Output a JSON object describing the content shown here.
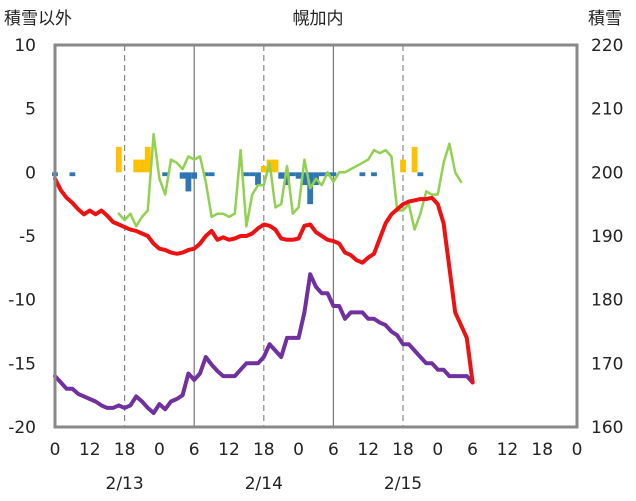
{
  "chart_data": {
    "type": "line",
    "title": "幌加内",
    "left_axis_label": "積雪以外",
    "right_axis_label": "積雪",
    "ylim_left": [
      -20,
      10
    ],
    "ylim_right": [
      160,
      220
    ],
    "left_ticks": [
      "10",
      "5",
      "0",
      "-5",
      "-10",
      "-15",
      "-20"
    ],
    "right_ticks": [
      "220",
      "210",
      "200",
      "190",
      "180",
      "170",
      "160"
    ],
    "x_hour_ticks": [
      "0",
      "12",
      "18",
      "0",
      "6",
      "12",
      "18",
      "0",
      "6",
      "12",
      "18",
      "0",
      "6",
      "12",
      "18",
      "0"
    ],
    "x_hour_values": [
      0,
      6,
      12,
      18,
      24,
      30,
      36,
      42,
      48,
      54,
      60,
      66,
      72,
      78,
      84,
      90
    ],
    "date_labels": [
      {
        "label": "2/13",
        "x": 12
      },
      {
        "label": "2/14",
        "x": 36
      },
      {
        "label": "2/15",
        "x": 60
      }
    ],
    "grid": {
      "dashed_hours": [
        12,
        36,
        60
      ],
      "solid_hours": [
        24,
        48
      ],
      "horizontal": "none"
    },
    "colors": {
      "temperature": "#ee1111",
      "dewpoint": "#7030a0",
      "snow_depth": "#92d050",
      "precip_pos": "#ffc000",
      "precip_neg": "#2e75b6"
    },
    "series": [
      {
        "id": "temperature",
        "axis": "left",
        "x": [
          0,
          1,
          2,
          3,
          4,
          5,
          6,
          7,
          8,
          9,
          10,
          11,
          12,
          13,
          14,
          15,
          16,
          17,
          18,
          19,
          20,
          21,
          22,
          23,
          24,
          25,
          26,
          27,
          28,
          29,
          30,
          31,
          32,
          33,
          34,
          35,
          36,
          37,
          38,
          39,
          40,
          41,
          42,
          43,
          44,
          45,
          46,
          47,
          48,
          49,
          50,
          51,
          52,
          53,
          54,
          55,
          56,
          57,
          58,
          59,
          60,
          61,
          62,
          63,
          64,
          65,
          66,
          67,
          68,
          69,
          70,
          71,
          72
        ],
        "values": [
          -0.5,
          -1.4,
          -2.0,
          -2.4,
          -2.9,
          -3.3,
          -3.0,
          -3.3,
          -3.0,
          -3.4,
          -3.9,
          -4.1,
          -4.3,
          -4.5,
          -4.6,
          -4.8,
          -5.0,
          -5.6,
          -6.0,
          -6.1,
          -6.3,
          -6.4,
          -6.3,
          -6.1,
          -6.0,
          -5.6,
          -5.0,
          -4.6,
          -5.3,
          -5.1,
          -5.3,
          -5.2,
          -5.0,
          -5.0,
          -4.8,
          -4.4,
          -4.1,
          -4.2,
          -4.5,
          -5.2,
          -5.3,
          -5.3,
          -5.2,
          -4.2,
          -4.1,
          -4.7,
          -5.0,
          -5.3,
          -5.4,
          -5.6,
          -6.3,
          -6.5,
          -6.9,
          -7.1,
          -6.7,
          -6.4,
          -5.2,
          -4.0,
          -3.3,
          -2.9,
          -2.5,
          -2.3,
          -2.2,
          -2.1,
          -2.1,
          -2.0,
          -2.5,
          -4.0,
          -7.5,
          -11.0,
          -12.0,
          -13.0,
          -16.5
        ]
      },
      {
        "id": "dewpoint",
        "axis": "left",
        "x": [
          0,
          1,
          2,
          3,
          4,
          5,
          6,
          7,
          8,
          9,
          10,
          11,
          12,
          13,
          14,
          15,
          16,
          17,
          18,
          19,
          20,
          21,
          22,
          23,
          24,
          25,
          26,
          27,
          28,
          29,
          30,
          31,
          32,
          33,
          34,
          35,
          36,
          37,
          38,
          39,
          40,
          41,
          42,
          43,
          44,
          45,
          46,
          47,
          48,
          49,
          50,
          51,
          52,
          53,
          54,
          55,
          56,
          57,
          58,
          59,
          60,
          61,
          62,
          63,
          64,
          65,
          66,
          67,
          68,
          69,
          70,
          71,
          72
        ],
        "values": [
          -16.0,
          -16.5,
          -17.0,
          -17.0,
          -17.4,
          -17.6,
          -17.8,
          -18.0,
          -18.3,
          -18.5,
          -18.5,
          -18.3,
          -18.5,
          -18.3,
          -17.6,
          -18.0,
          -18.5,
          -18.9,
          -18.2,
          -18.6,
          -18.0,
          -17.8,
          -17.5,
          -15.8,
          -16.3,
          -15.8,
          -14.5,
          -15.1,
          -15.6,
          -16.0,
          -16.0,
          -16.0,
          -15.5,
          -15.0,
          -15.0,
          -15.0,
          -14.5,
          -13.5,
          -14.0,
          -14.5,
          -13.0,
          -13.0,
          -13.0,
          -11.0,
          -8.0,
          -9.0,
          -9.5,
          -9.5,
          -10.5,
          -10.5,
          -11.5,
          -11.0,
          -11.0,
          -11.0,
          -11.5,
          -11.5,
          -11.8,
          -12.0,
          -12.5,
          -12.8,
          -13.5,
          -13.5,
          -14.0,
          -14.5,
          -15.0,
          -15.0,
          -15.5,
          -15.5,
          -16.0,
          -16.0,
          -16.0,
          -16.0,
          -16.5
        ]
      },
      {
        "id": "snow_depth",
        "axis": "right",
        "x": [
          11,
          12,
          13,
          14,
          15,
          16,
          17,
          18,
          19,
          20,
          21,
          22,
          23,
          24,
          25,
          26,
          27,
          28,
          29,
          30,
          31,
          32,
          33,
          34,
          35,
          36,
          37,
          38,
          39,
          40,
          41,
          42,
          43,
          44,
          45,
          46,
          47,
          48,
          49,
          50,
          51,
          52,
          53,
          54,
          55,
          56,
          57,
          58,
          59,
          60,
          61,
          62,
          63,
          64,
          65,
          66,
          67,
          68,
          69,
          70
        ],
        "values": [
          193.5,
          192.5,
          193.5,
          191.5,
          193,
          194,
          206,
          199,
          196.5,
          202,
          201.5,
          200.5,
          202.5,
          202,
          202.5,
          198.5,
          193,
          193.5,
          193.5,
          193,
          193.5,
          203.5,
          191.5,
          196.5,
          198,
          198,
          201.5,
          194.5,
          195,
          201,
          193.5,
          194.5,
          202,
          197.5,
          199,
          198,
          200,
          198.5,
          200,
          200,
          200.5,
          201,
          201.5,
          202,
          203.5,
          203,
          203.5,
          202.5,
          194,
          194,
          195,
          191,
          193.5,
          197,
          196.5,
          196.5,
          201.5,
          204.5,
          200,
          198.5
        ]
      },
      {
        "id": "precipitation",
        "axis": "left",
        "type": "bar",
        "x": [
          0,
          3,
          11,
          14,
          15,
          16,
          19,
          22,
          23,
          24,
          26,
          27,
          33,
          34,
          35,
          36,
          37,
          38,
          39,
          40,
          41,
          42,
          43,
          44,
          45,
          46,
          47,
          48,
          53,
          55,
          60,
          62,
          63
        ],
        "values": [
          -0.3,
          -0.3,
          2.0,
          1.0,
          1.0,
          2.0,
          -0.3,
          -0.5,
          -1.5,
          -0.5,
          -0.3,
          -0.3,
          -0.3,
          -0.3,
          -1.0,
          0.5,
          1.0,
          1.0,
          -0.5,
          -1.0,
          -0.3,
          -0.5,
          -1.0,
          -2.5,
          -1.0,
          -0.3,
          -0.3,
          -0.3,
          -0.3,
          -0.3,
          1.0,
          2.0,
          -0.3
        ]
      }
    ]
  }
}
